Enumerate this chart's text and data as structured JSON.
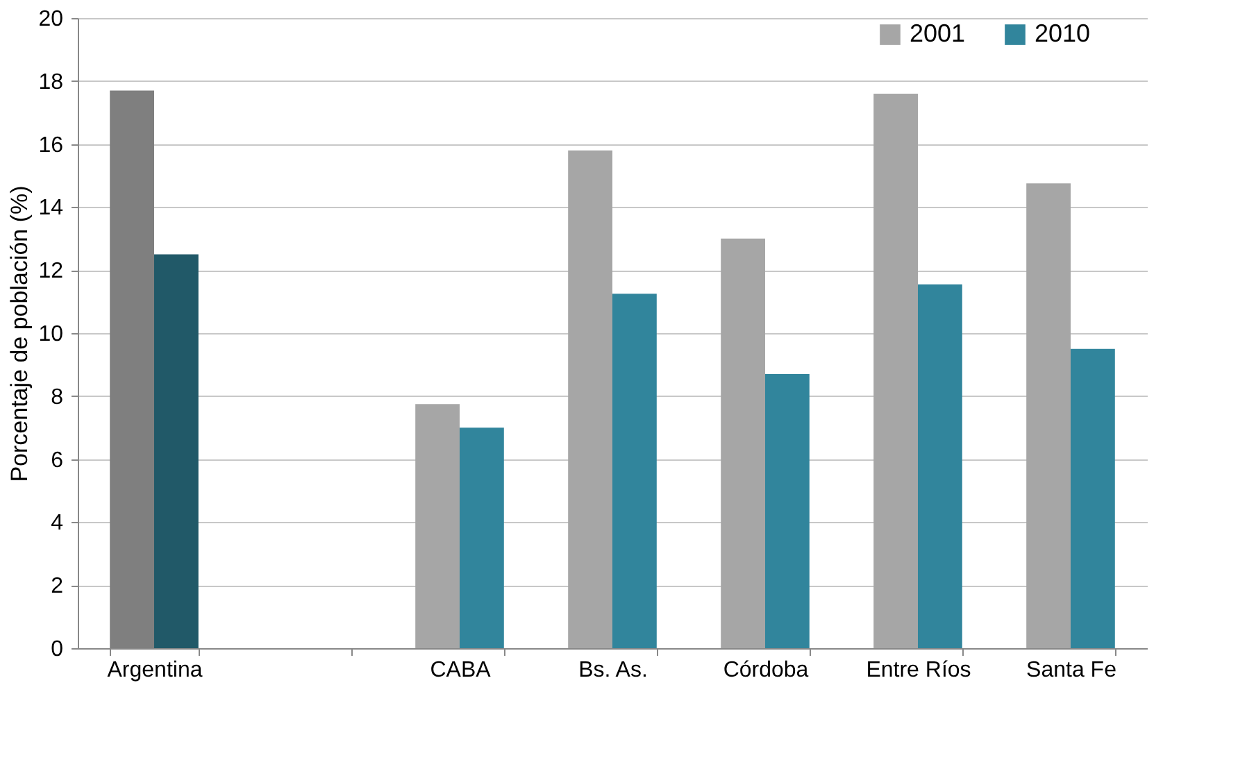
{
  "chart_data": {
    "type": "bar",
    "ylabel": "Porcentaje de población (%)",
    "categories": [
      "Argentina",
      null,
      "CABA",
      "Bs. As.",
      "Córdoba",
      "Entre Ríos",
      "Santa Fe"
    ],
    "series": [
      {
        "name": "2001",
        "color": "#a6a6a6",
        "colors": [
          "#7f7f7f",
          "#a6a6a6",
          "#a6a6a6",
          "#a6a6a6",
          "#a6a6a6",
          "#a6a6a6",
          "#a6a6a6"
        ],
        "values": [
          17.7,
          null,
          7.75,
          15.8,
          13.0,
          17.6,
          14.75
        ]
      },
      {
        "name": "2010",
        "color": "#31859c",
        "colors": [
          "#215968",
          "#31859c",
          "#31859c",
          "#31859c",
          "#31859c",
          "#31859c",
          "#31859c"
        ],
        "values": [
          12.5,
          null,
          7.0,
          11.25,
          8.7,
          11.55,
          9.5
        ]
      }
    ],
    "ylim": [
      0,
      20
    ],
    "yticks": [
      0,
      2,
      4,
      6,
      8,
      10,
      12,
      14,
      16,
      18,
      20
    ],
    "grid": "y",
    "legend": "top right"
  }
}
